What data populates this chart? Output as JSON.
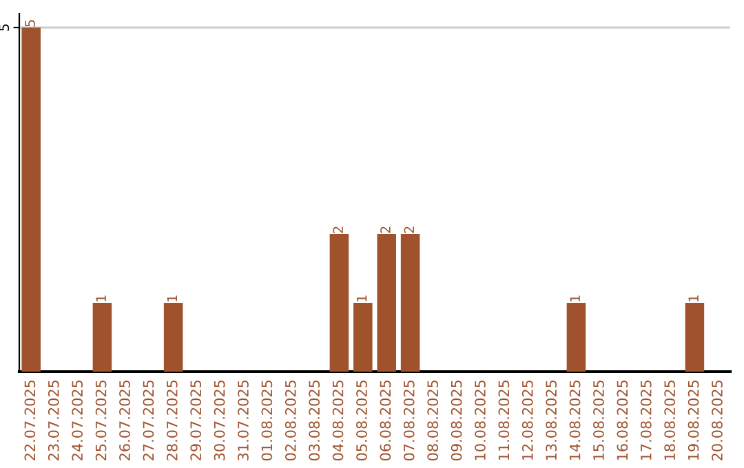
{
  "chart_data": {
    "type": "bar",
    "categories": [
      "22.07.2025",
      "23.07.2025",
      "24.07.2025",
      "25.07.2025",
      "26.07.2025",
      "27.07.2025",
      "28.07.2025",
      "29.07.2025",
      "30.07.2025",
      "31.07.2025",
      "01.08.2025",
      "02.08.2025",
      "03.08.2025",
      "04.08.2025",
      "05.08.2025",
      "06.08.2025",
      "07.08.2025",
      "08.08.2025",
      "09.08.2025",
      "10.08.2025",
      "11.08.2025",
      "12.08.2025",
      "13.08.2025",
      "14.08.2025",
      "15.08.2025",
      "16.08.2025",
      "17.08.2025",
      "18.08.2025",
      "19.08.2025",
      "20.08.2025"
    ],
    "values": [
      5,
      0,
      0,
      1,
      0,
      0,
      1,
      0,
      0,
      0,
      0,
      0,
      0,
      2,
      1,
      2,
      2,
      0,
      0,
      0,
      0,
      0,
      0,
      1,
      0,
      0,
      0,
      0,
      1,
      0
    ],
    "value_labels": [
      "5",
      null,
      null,
      "1",
      null,
      null,
      "1",
      null,
      null,
      null,
      null,
      null,
      null,
      "2",
      "1",
      "2",
      "2",
      null,
      null,
      null,
      null,
      null,
      null,
      "1",
      null,
      null,
      null,
      null,
      "1",
      null
    ],
    "color": "#a0522d",
    "ylim": [
      0,
      5.2
    ],
    "yticks": [
      5
    ],
    "grid": "y",
    "legend": false
  }
}
